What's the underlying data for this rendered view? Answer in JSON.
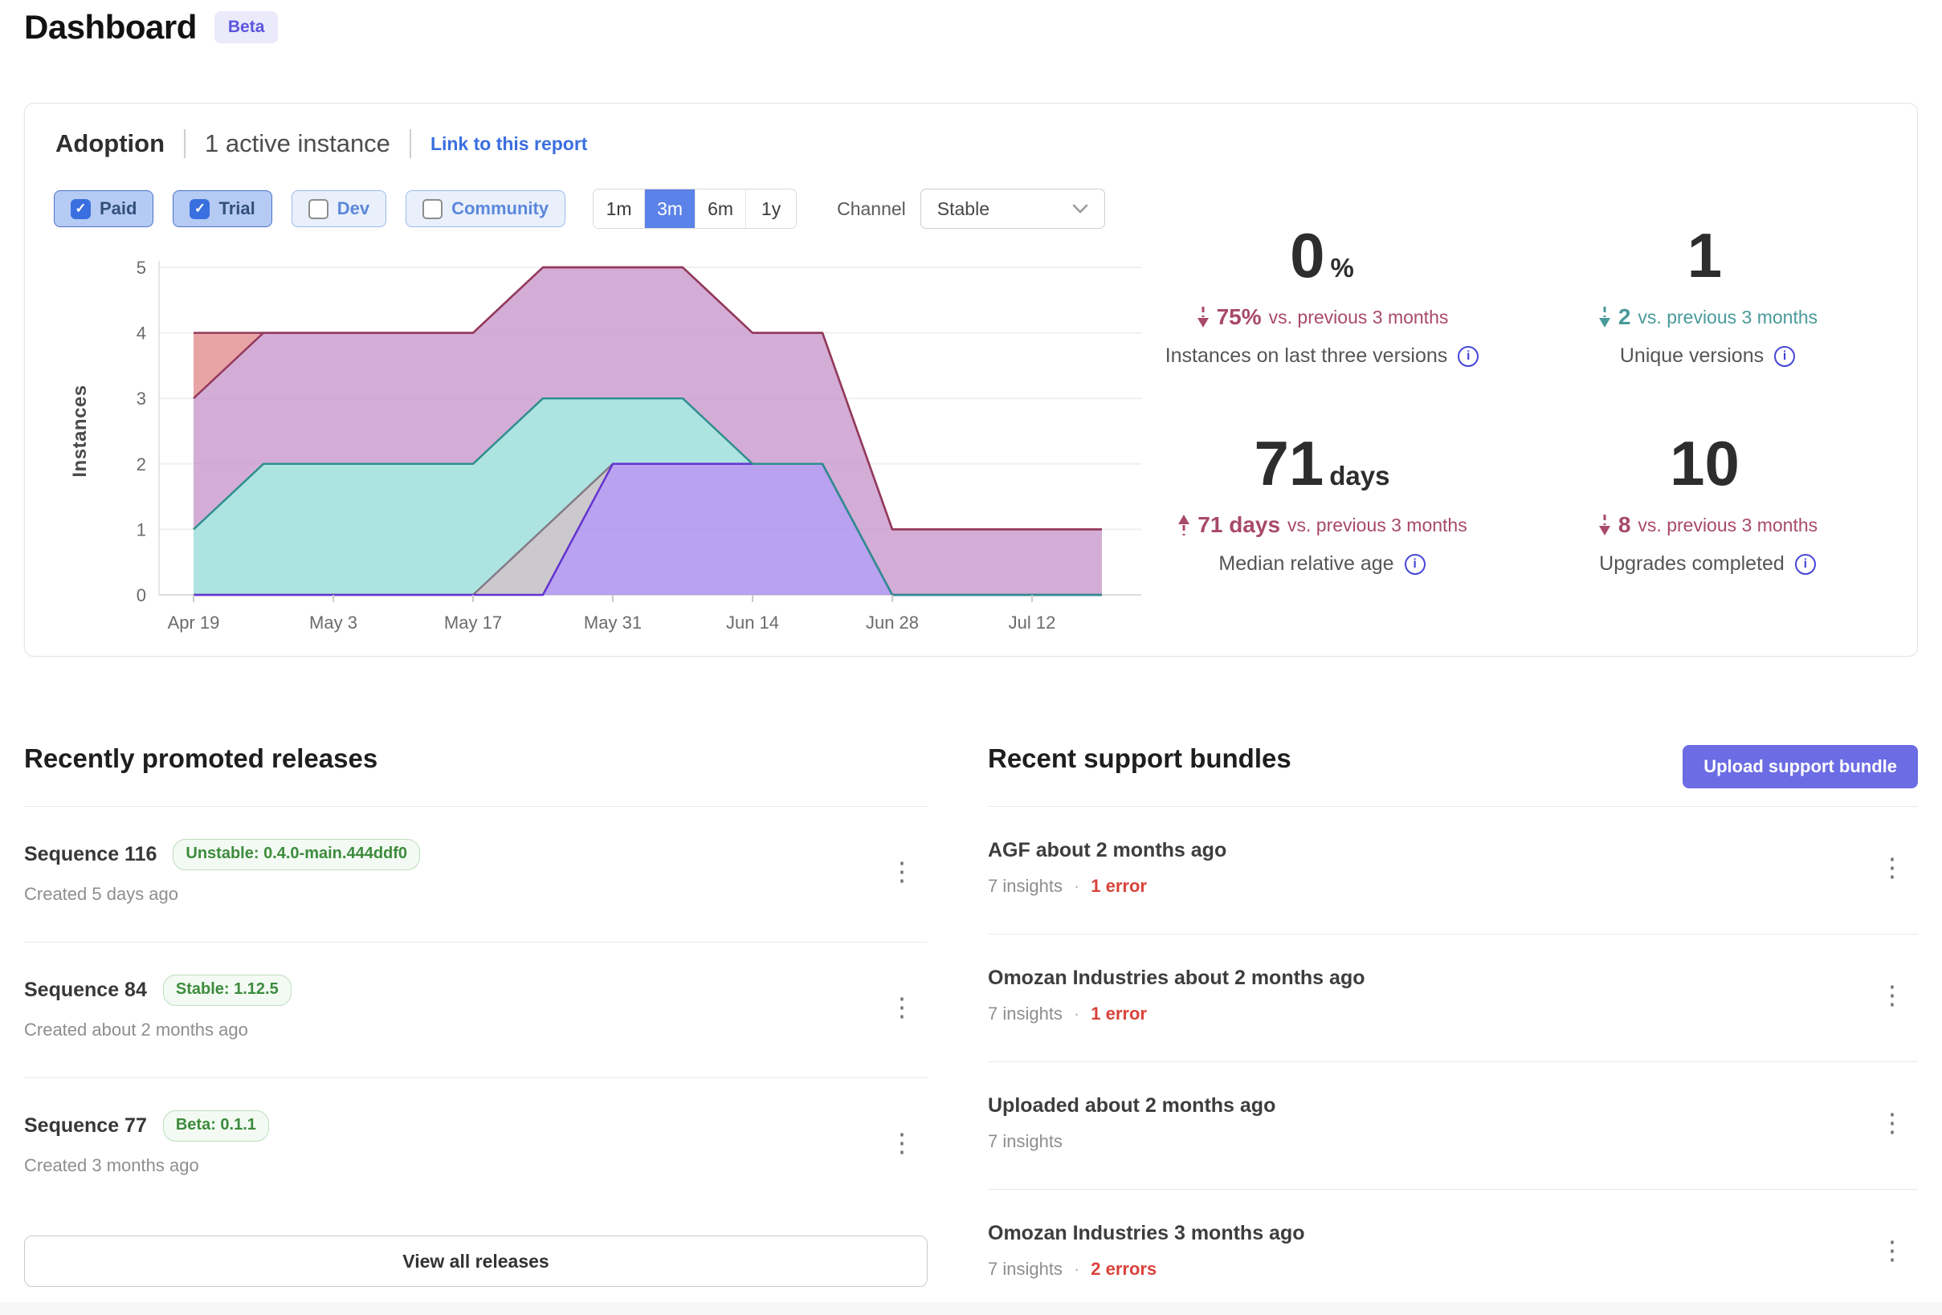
{
  "page": {
    "title": "Dashboard",
    "badge": "Beta"
  },
  "adoption": {
    "title": "Adoption",
    "subtitle": "1 active instance",
    "link": "Link to this report",
    "filters": [
      {
        "label": "Paid",
        "checked": true
      },
      {
        "label": "Trial",
        "checked": true
      },
      {
        "label": "Dev",
        "checked": false
      },
      {
        "label": "Community",
        "checked": false
      }
    ],
    "ranges": [
      {
        "label": "1m",
        "selected": false
      },
      {
        "label": "3m",
        "selected": true
      },
      {
        "label": "6m",
        "selected": false
      },
      {
        "label": "1y",
        "selected": false
      }
    ],
    "channel": {
      "label": "Channel",
      "value": "Stable"
    },
    "stats": [
      {
        "value": "0",
        "unit": "%",
        "trend": "down",
        "delta": "75%",
        "suffix": "vs. previous 3 months",
        "color": "#a84a68",
        "label": "Instances on last three versions"
      },
      {
        "value": "1",
        "unit": "",
        "trend": "down",
        "delta": "2",
        "suffix": "vs. previous 3 months",
        "color": "#4a9a9a",
        "label": "Unique versions"
      },
      {
        "value": "71",
        "unit": "days",
        "trend": "up",
        "delta": "71 days",
        "suffix": "vs. previous 3 months",
        "color": "#a84a68",
        "label": "Median relative age"
      },
      {
        "value": "10",
        "unit": "",
        "trend": "down",
        "delta": "8",
        "suffix": "vs. previous 3 months",
        "color": "#a84a68",
        "label": "Upgrades completed"
      }
    ]
  },
  "chart_data": {
    "type": "area",
    "stacked": true,
    "title": "Adoption instances by version over time",
    "xlabel": "",
    "ylabel": "Instances",
    "ylim": [
      0,
      5
    ],
    "yticks": [
      0,
      1,
      2,
      3,
      4,
      5
    ],
    "grid": "horizontal",
    "legend": "none",
    "x": [
      "Apr 19",
      "Apr 26",
      "May 3",
      "May 10",
      "May 17",
      "May 24",
      "May 31",
      "Jun 7",
      "Jun 14",
      "Jun 21",
      "Jun 28",
      "Jul 5",
      "Jul 12",
      "Jul 19"
    ],
    "x_tick_labels": [
      "Apr 19",
      "May 3",
      "May 17",
      "May 31",
      "Jun 14",
      "Jun 28",
      "Jul 12"
    ],
    "stroke_order": [
      1,
      0,
      2,
      3,
      4
    ],
    "series": [
      {
        "name": "version-purple",
        "fill": "#a98ded",
        "fill_opacity": 0.82,
        "stroke": "#6233cf",
        "values": [
          0,
          0,
          0,
          0,
          0,
          0,
          2,
          2,
          2,
          2,
          0,
          0,
          0,
          0
        ]
      },
      {
        "name": "version-gray",
        "fill": "#c6c3c8",
        "fill_opacity": 0.9,
        "stroke": "#837a86",
        "values": [
          0,
          0,
          0,
          0,
          0,
          1,
          0,
          0,
          0,
          0,
          0,
          0,
          0,
          0
        ]
      },
      {
        "name": "version-teal",
        "fill": "#a9e2df",
        "fill_opacity": 0.95,
        "stroke": "#2f8e8e",
        "values": [
          1,
          2,
          2,
          2,
          2,
          2,
          1,
          1,
          0,
          0,
          0,
          0,
          0,
          0
        ]
      },
      {
        "name": "version-mauve",
        "fill": "#c898cc",
        "fill_opacity": 0.8,
        "stroke": "#93395c",
        "values": [
          2,
          2,
          2,
          2,
          2,
          2,
          2,
          2,
          2,
          2,
          1,
          1,
          1,
          1
        ]
      },
      {
        "name": "version-salmon",
        "fill": "#e59a9a",
        "fill_opacity": 0.9,
        "stroke": "#93395c",
        "values": [
          1,
          0,
          0,
          0,
          0,
          0,
          0,
          0,
          0,
          0,
          0,
          0,
          0,
          0
        ]
      }
    ]
  },
  "releases": {
    "heading": "Recently promoted releases",
    "view_all": "View all releases",
    "items": [
      {
        "name": "Sequence 116",
        "tag": "Unstable: 0.4.0-main.444ddf0",
        "created": "Created 5 days ago"
      },
      {
        "name": "Sequence 84",
        "tag": "Stable: 1.12.5",
        "created": "Created about 2 months ago"
      },
      {
        "name": "Sequence 77",
        "tag": "Beta: 0.1.1",
        "created": "Created 3 months ago"
      }
    ]
  },
  "bundles": {
    "heading": "Recent support bundles",
    "upload_button": "Upload support bundle",
    "separator": "·",
    "items": [
      {
        "name": "AGF about 2 months ago",
        "insights": "7 insights",
        "errors": "1 error"
      },
      {
        "name": "Omozan Industries about 2 months ago",
        "insights": "7 insights",
        "errors": "1 error"
      },
      {
        "name": "Uploaded about 2 months ago",
        "insights": "7 insights",
        "errors": ""
      },
      {
        "name": "Omozan Industries 3 months ago",
        "insights": "7 insights",
        "errors": "2 errors"
      }
    ]
  },
  "palette": {
    "accent_blue": "#5b82e8",
    "link_blue": "#3b6fe0",
    "indigo_button": "#6c6ce4",
    "badge_purple": "#5a55dd",
    "trend_rose": "#a84a68",
    "trend_teal": "#4a9a9a",
    "error_red": "#d9433b",
    "pill_green": "#3d8b3d",
    "info_icon_blue": "#4745d6"
  }
}
